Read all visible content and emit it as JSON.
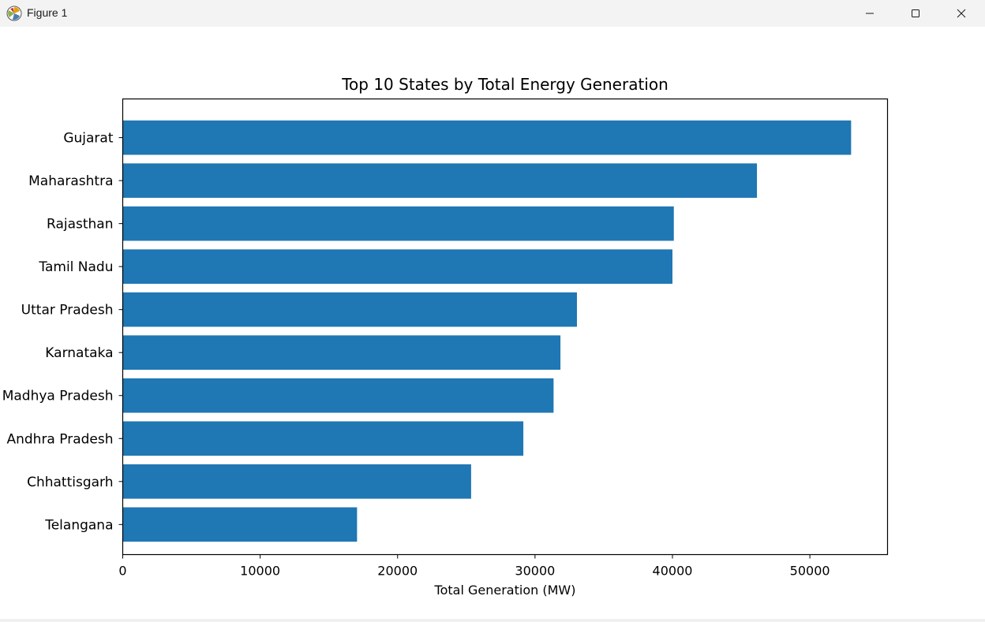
{
  "window": {
    "title": "Figure 1",
    "icon": "matplotlib-icon",
    "controls": {
      "minimize_icon": "minimize-icon",
      "maximize_icon": "maximize-icon",
      "close_icon": "close-icon"
    }
  },
  "chart_data": {
    "type": "bar",
    "orientation": "horizontal",
    "title": "Top 10 States by Total Energy Generation",
    "xlabel": "Total Generation (MW)",
    "ylabel": "",
    "categories": [
      "Gujarat",
      "Maharashtra",
      "Rajasthan",
      "Tamil Nadu",
      "Uttar Pradesh",
      "Karnataka",
      "Madhya Pradesh",
      "Andhra Pradesh",
      "Chhattisgarh",
      "Telangana"
    ],
    "values": [
      53000,
      46150,
      40100,
      40000,
      33050,
      31850,
      31350,
      29150,
      25350,
      17050
    ],
    "xlim": [
      0,
      55650
    ],
    "xticks": [
      0,
      10000,
      20000,
      30000,
      40000,
      50000
    ],
    "xtick_labels": [
      "0",
      "10000",
      "20000",
      "30000",
      "40000",
      "50000"
    ],
    "bar_color": "#1f77b4",
    "grid": false,
    "legend": "none"
  }
}
